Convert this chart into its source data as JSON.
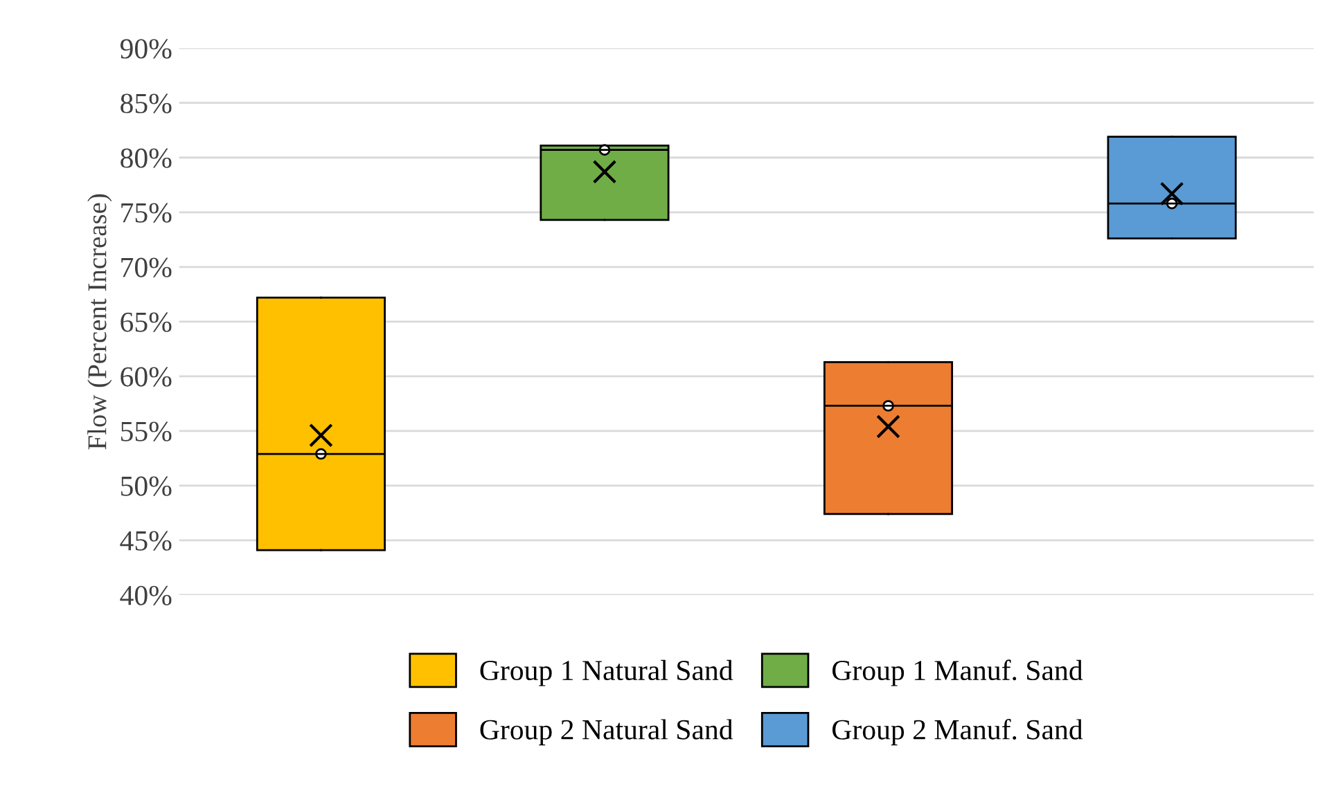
{
  "chart_data": {
    "type": "box",
    "ylabel": "Flow (Percent Increase)",
    "categories": [
      null,
      null,
      null,
      null
    ],
    "series": [
      {
        "name": "Group 1 Natural Sand",
        "color": "#ffc000",
        "boxes": [
          {
            "low": 44.1,
            "q1": 44.1,
            "median": 52.9,
            "q3": 67.2,
            "high": 67.2,
            "mean": 54.6,
            "outliers": [
              52.9
            ]
          },
          null,
          null,
          null
        ]
      },
      {
        "name": "Group 1 Manuf. Sand",
        "color": "#70ad47",
        "boxes": [
          null,
          {
            "low": 74.3,
            "q1": 74.3,
            "median": 80.7,
            "q3": 81.1,
            "high": 81.1,
            "mean": 78.7,
            "outliers": [
              80.7
            ]
          },
          null,
          null
        ]
      },
      {
        "name": "Group 2 Natural Sand",
        "color": "#ed7d31",
        "boxes": [
          null,
          null,
          {
            "low": 47.4,
            "q1": 47.4,
            "median": 57.3,
            "q3": 61.3,
            "high": 61.3,
            "mean": 55.4,
            "outliers": [
              57.3
            ]
          },
          null
        ]
      },
      {
        "name": "Group 2 Manuf. Sand",
        "color": "#5b9bd5",
        "boxes": [
          null,
          null,
          null,
          {
            "low": 72.6,
            "q1": 72.6,
            "median": 75.8,
            "q3": 81.9,
            "high": 81.9,
            "mean": 76.7,
            "outliers": [
              75.8
            ]
          }
        ]
      }
    ],
    "ylim": [
      40,
      90
    ],
    "yticks": [
      {
        "value": 40,
        "label": "40%"
      },
      {
        "value": 45,
        "label": "45%"
      },
      {
        "value": 50,
        "label": "50%"
      },
      {
        "value": 55,
        "label": "55%"
      },
      {
        "value": 60,
        "label": "60%"
      },
      {
        "value": 65,
        "label": "65%"
      },
      {
        "value": 70,
        "label": "70%"
      },
      {
        "value": 75,
        "label": "75%"
      },
      {
        "value": 80,
        "label": "80%"
      },
      {
        "value": 85,
        "label": "85%"
      },
      {
        "value": 90,
        "label": "90%"
      }
    ],
    "grid": "y",
    "legend": "bottom"
  }
}
